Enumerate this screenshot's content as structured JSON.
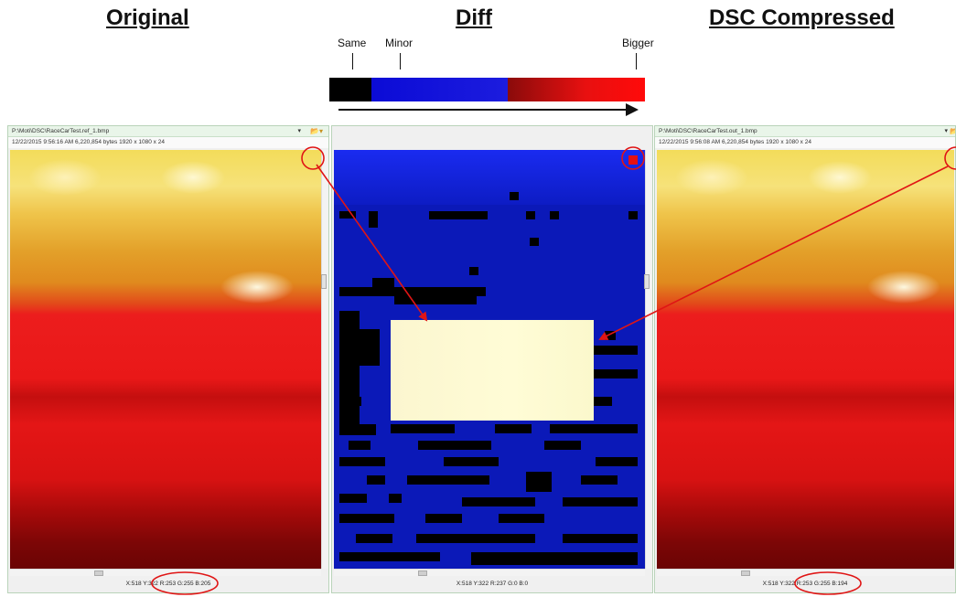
{
  "headings": {
    "original": "Original",
    "diff": "Diff",
    "dsc_compressed": "DSC Compressed"
  },
  "scale": {
    "same": "Same",
    "minor": "Minor",
    "bigger": "Bigger",
    "colors": {
      "same": "#000000",
      "minor": "#1414dc",
      "bigger": "#ff0a0a"
    }
  },
  "panels": {
    "left": {
      "path": "P:\\Moti\\DSC\\RaceCarTest.ref_1.bmp",
      "info": "12/22/2015 9:56:16 AM   6,220,854 bytes   1920 x 1080 x 24",
      "status": "X:518 Y:322 R:253 G:255 B:205"
    },
    "middle": {
      "status": "X:518 Y:322 R:237 G:0 B:0"
    },
    "right": {
      "path": "P:\\Moti\\DSC\\RaceCarTest.out_1.bmp",
      "info": "12/22/2015 9:56:08 AM   6,220,854 bytes   1920 x 1080 x 24",
      "status": "X:518 Y:322 R:253 G:255 B:194"
    }
  },
  "annotation": {
    "color": "#e01515"
  },
  "icons": [
    "dropdown-icon",
    "folder-icon",
    "scroll-thumb-icon",
    "dropdown-icon",
    "folder-icon"
  ]
}
